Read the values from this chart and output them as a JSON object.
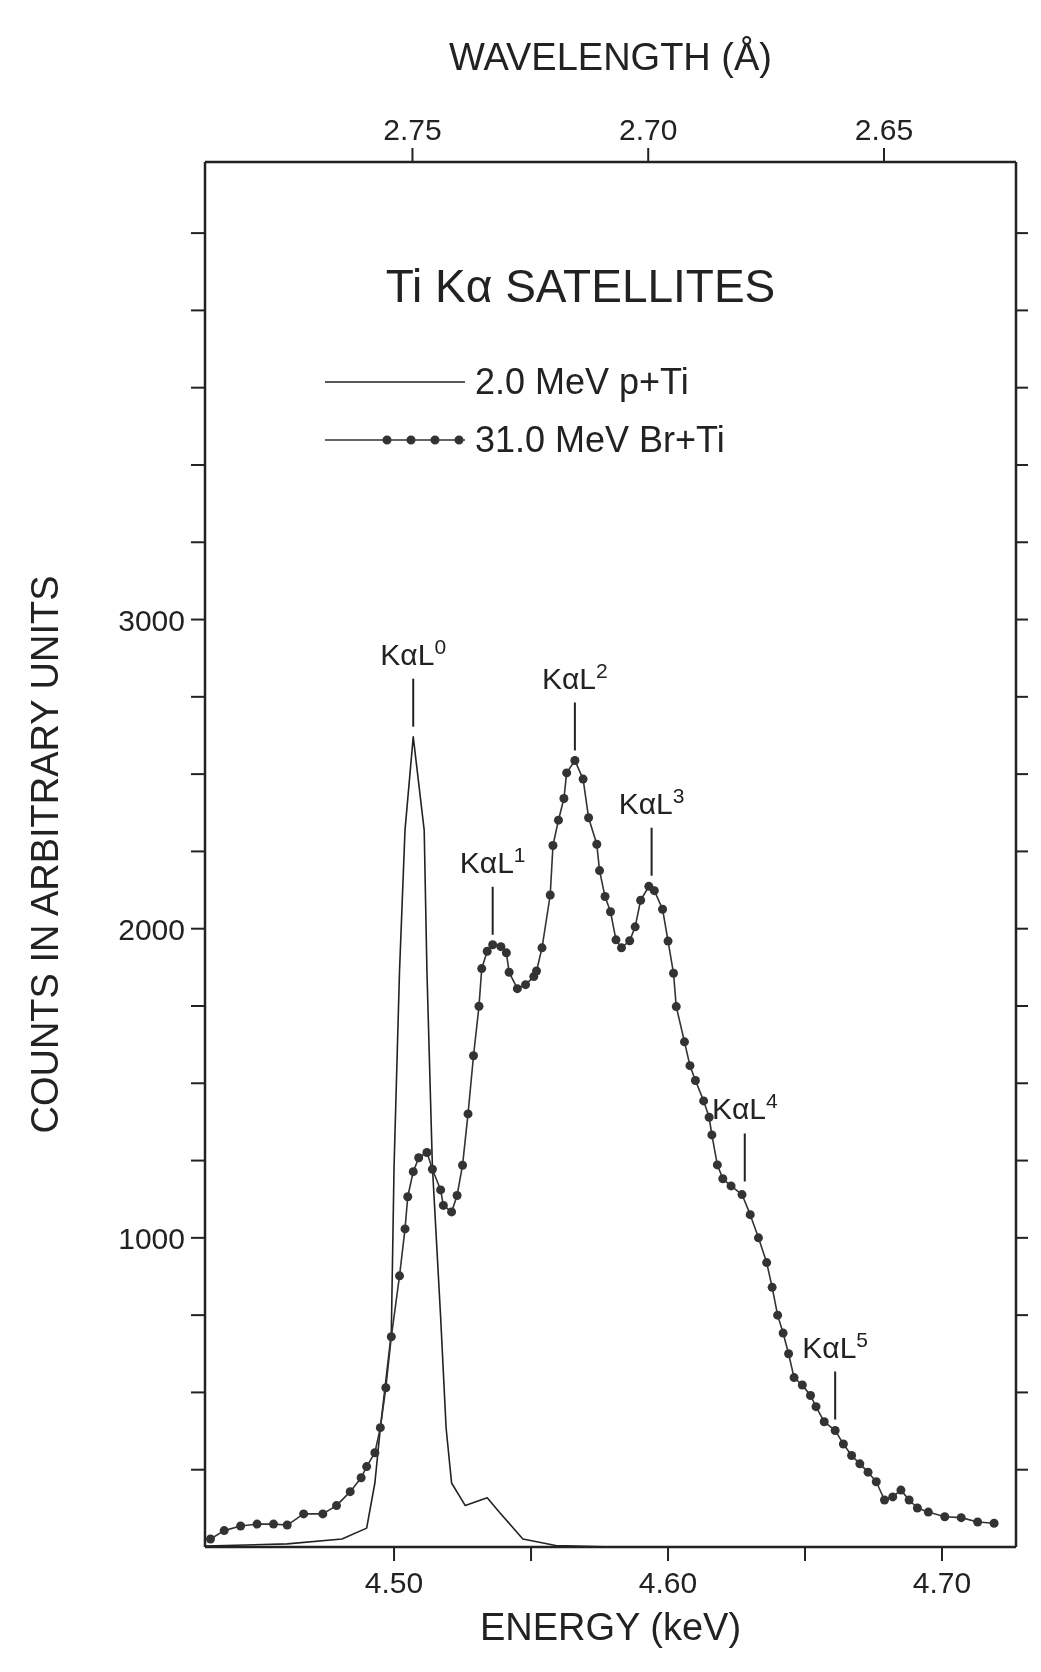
{
  "chart_data": {
    "type": "line",
    "title": "Ti Kα SATELLITES",
    "xlabel": "ENERGY (keV)",
    "ylabel": "COUNTS IN ARBITRARY UNITS",
    "x2label": "WAVELENGTH (Å)",
    "xlim": [
      4.431,
      4.727
    ],
    "xticks": [
      {
        "value": 4.5,
        "label": "4.50"
      },
      {
        "value": 4.55,
        "label": null
      },
      {
        "value": 4.6,
        "label": "4.60"
      },
      {
        "value": 4.65,
        "label": null
      },
      {
        "value": 4.7,
        "label": "4.70"
      }
    ],
    "x2lim": [
      2.794,
      2.622
    ],
    "x2ticks": [
      2.75,
      {
        "value": 2.7,
        "label": "2.70"
      },
      2.65
    ],
    "ylim": [
      0,
      4480
    ],
    "yticks": [
      {
        "value": 250,
        "label": null
      },
      {
        "value": 500,
        "label": null
      },
      {
        "value": 750,
        "label": null
      },
      {
        "value": 1000,
        "label": "1000"
      },
      {
        "value": 1250,
        "label": null
      },
      {
        "value": 1500,
        "label": null
      },
      {
        "value": 1750,
        "label": null
      },
      {
        "value": 2000,
        "label": "2000"
      },
      {
        "value": 2250,
        "label": null
      },
      {
        "value": 2500,
        "label": null
      },
      {
        "value": 2750,
        "label": null
      },
      {
        "value": 3000,
        "label": "3000"
      },
      {
        "value": 3250,
        "label": null
      },
      {
        "value": 3500,
        "label": null
      },
      {
        "value": 3750,
        "label": null
      },
      {
        "value": 4000,
        "label": null
      },
      {
        "value": 4250,
        "label": null
      }
    ],
    "legend": "top",
    "line_style": "solid",
    "series": [
      {
        "name": "2.0 MeV p+Ti",
        "color": "#222222",
        "marker": "none",
        "x": [
          4.431,
          4.461,
          4.481,
          4.49,
          4.493,
          4.495,
          4.499,
          4.5,
          4.502,
          4.504,
          4.507,
          4.511,
          4.512,
          4.514,
          4.517,
          4.519,
          4.521,
          4.526,
          4.534,
          4.539,
          4.547,
          4.559,
          4.58,
          4.72
        ],
        "values": [
          3,
          10,
          26,
          61,
          207,
          385,
          692,
          1230,
          1864,
          2319,
          2621,
          2319,
          1864,
          1230,
          744,
          385,
          207,
          134,
          159,
          107,
          26,
          5,
          0,
          0
        ]
      },
      {
        "name": "31.0 MeV Br+Ti",
        "color": "#333333",
        "marker": "circle",
        "x": [
          4.433,
          4.438,
          4.444,
          4.45,
          4.456,
          4.461,
          4.467,
          4.474,
          4.479,
          4.484,
          4.488,
          4.49,
          4.493,
          4.495,
          4.497,
          4.499,
          4.502,
          4.504,
          4.505,
          4.507,
          4.509,
          4.512,
          4.514,
          4.517,
          4.518,
          4.521,
          4.523,
          4.525,
          4.527,
          4.529,
          4.531,
          4.532,
          4.534,
          4.536,
          4.539,
          4.541,
          4.542,
          4.545,
          4.548,
          4.551,
          4.552,
          4.554,
          4.557,
          4.558,
          4.56,
          4.562,
          4.563,
          4.566,
          4.569,
          4.571,
          4.574,
          4.575,
          4.577,
          4.579,
          4.581,
          4.583,
          4.586,
          4.588,
          4.59,
          4.593,
          4.595,
          4.598,
          4.6,
          4.602,
          4.603,
          4.606,
          4.608,
          4.61,
          4.613,
          4.615,
          4.616,
          4.618,
          4.62,
          4.623,
          4.627,
          4.63,
          4.633,
          4.636,
          4.638,
          4.64,
          4.642,
          4.644,
          4.646,
          4.649,
          4.652,
          4.654,
          4.657,
          4.661,
          4.664,
          4.667,
          4.67,
          4.673,
          4.676,
          4.679,
          4.682,
          4.685,
          4.688,
          4.691,
          4.695,
          4.701,
          4.707,
          4.713,
          4.719
        ],
        "values": [
          26,
          53,
          68,
          74,
          74,
          71,
          107,
          107,
          134,
          179,
          224,
          260,
          305,
          386,
          515,
          680,
          877,
          1029,
          1133,
          1214,
          1259,
          1276,
          1222,
          1155,
          1105,
          1084,
          1137,
          1235,
          1401,
          1589,
          1749,
          1871,
          1927,
          1948,
          1942,
          1922,
          1859,
          1806,
          1819,
          1845,
          1863,
          1938,
          2109,
          2269,
          2351,
          2421,
          2504,
          2544,
          2484,
          2359,
          2273,
          2188,
          2104,
          2055,
          1964,
          1938,
          1961,
          2006,
          2092,
          2137,
          2123,
          2063,
          1960,
          1856,
          1748,
          1634,
          1557,
          1509,
          1443,
          1390,
          1333,
          1236,
          1191,
          1168,
          1140,
          1075,
          1000,
          920,
          840,
          750,
          692,
          625,
          548,
          524,
          490,
          454,
          405,
          377,
          333,
          296,
          269,
          242,
          211,
          152,
          162,
          184,
          152,
          126,
          113,
          98,
          95,
          81,
          77
        ]
      }
    ],
    "annotations": [
      {
        "text": "KαL$^{0}$",
        "x": 4.507,
        "y": 2621
      },
      {
        "text": "KαL$^{1}$",
        "x": 4.536,
        "y": 1948
      },
      {
        "text": "KαL$^{2}$",
        "x": 4.566,
        "y": 2544
      },
      {
        "text": "KαL$^{3}$",
        "x": 4.594,
        "y": 2139
      },
      {
        "text": "KαL$^{4}$",
        "x": 4.628,
        "y": 1150
      },
      {
        "text": "KαL$^{5}$",
        "x": 4.661,
        "y": 380
      }
    ]
  }
}
